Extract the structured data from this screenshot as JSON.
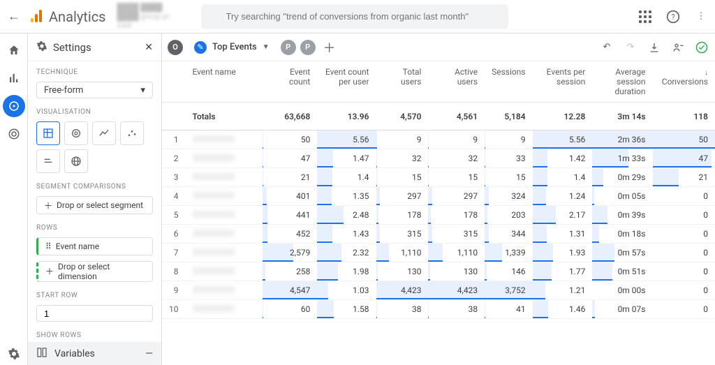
{
  "app": {
    "name": "Analytics",
    "property_line1": "████ ████",
    "property_line2": "████-group.pl · GA4"
  },
  "search": {
    "placeholder": "Try searching \"trend of conversions from organic last month\""
  },
  "rail": {
    "items": [
      "home",
      "reports",
      "explore",
      "advertising"
    ],
    "active_index": 2
  },
  "panel": {
    "title": "Settings",
    "technique_label": "TECHNIQUE",
    "technique_value": "Free-form",
    "visualisation_label": "VISUALISATION",
    "segment_label": "SEGMENT COMPARISONS",
    "segment_drop": "Drop or select segment",
    "rows_label": "ROWS",
    "rows_value": "Event name",
    "rows_drop": "Drop or select dimension",
    "startrow_label": "START ROW",
    "startrow_value": "1",
    "showrows_label": "SHOW ROWS",
    "variables": "Variables"
  },
  "toolbar": {
    "step_label": "Top Events",
    "o": "O",
    "p": "P",
    "edit_icon": "✎"
  },
  "table": {
    "columns": [
      "Event name",
      "Event count",
      "Event count per user",
      "Total users",
      "Active users",
      "Sessions",
      "Events per session",
      "Average session duration",
      "Conversions"
    ],
    "sort_col_index": 8,
    "totals_label": "Totals",
    "totals": [
      "63,668",
      "13.96",
      "4,570",
      "4,561",
      "5,184",
      "12.28",
      "3m 14s",
      "118"
    ],
    "rows": [
      {
        "i": 1,
        "v": [
          "50",
          "5.56",
          "9",
          "9",
          "9",
          "5.56",
          "2m 36s",
          "50"
        ]
      },
      {
        "i": 2,
        "v": [
          "47",
          "1.47",
          "32",
          "32",
          "33",
          "1.42",
          "1m 33s",
          "47"
        ]
      },
      {
        "i": 3,
        "v": [
          "21",
          "1.4",
          "15",
          "15",
          "15",
          "1.4",
          "0m 29s",
          "21"
        ]
      },
      {
        "i": 4,
        "v": [
          "401",
          "1.35",
          "297",
          "297",
          "324",
          "1.24",
          "0m 05s",
          "0"
        ]
      },
      {
        "i": 5,
        "v": [
          "441",
          "2.48",
          "178",
          "178",
          "203",
          "2.17",
          "0m 39s",
          "0"
        ]
      },
      {
        "i": 6,
        "v": [
          "452",
          "1.43",
          "315",
          "315",
          "344",
          "1.31",
          "0m 18s",
          "0"
        ]
      },
      {
        "i": 7,
        "v": [
          "2,579",
          "2.32",
          "1,110",
          "1,110",
          "1,339",
          "1.93",
          "0m 57s",
          "0"
        ]
      },
      {
        "i": 8,
        "v": [
          "258",
          "1.98",
          "130",
          "130",
          "146",
          "1.77",
          "0m 51s",
          "0"
        ]
      },
      {
        "i": 9,
        "v": [
          "4,547",
          "1.03",
          "4,423",
          "4,423",
          "3,752",
          "1.21",
          "0m 00s",
          "0"
        ]
      },
      {
        "i": 10,
        "v": [
          "60",
          "1.58",
          "38",
          "38",
          "41",
          "1.46",
          "0m 07s",
          "0"
        ]
      }
    ],
    "bar_columns": [
      1,
      2,
      3,
      4,
      5,
      6,
      7,
      8
    ],
    "col_max": {
      "1": 4547,
      "2": 5.56,
      "3": 4423,
      "4": 4423,
      "5": 3752,
      "6": 5.56,
      "7": 156,
      "8": 50
    },
    "duration_col_index": 7,
    "colors": {
      "bar_bg": "#e8f0fe",
      "bar_line": "#1a73e8"
    }
  }
}
